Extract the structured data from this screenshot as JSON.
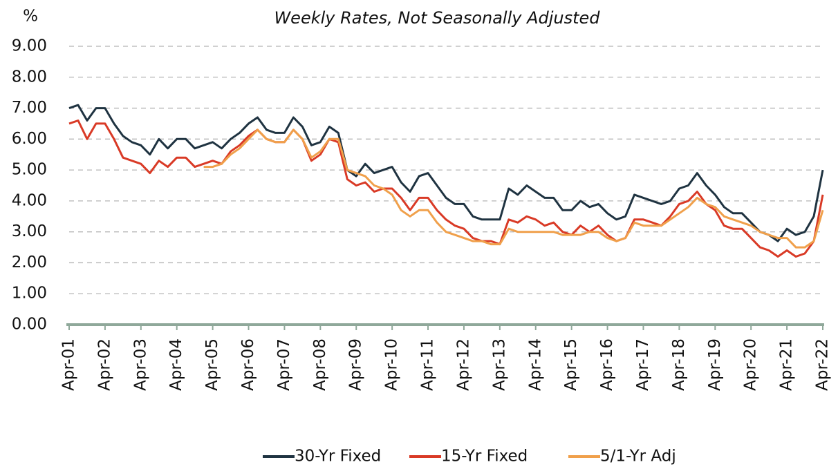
{
  "chart_data": {
    "type": "line",
    "subtitle": "Weekly Rates, Not Seasonally Adjusted",
    "y_label": "%",
    "x": [
      "2001-04",
      "2001-07",
      "2001-10",
      "2002-01",
      "2002-04",
      "2002-07",
      "2002-10",
      "2003-01",
      "2003-04",
      "2003-07",
      "2003-10",
      "2004-01",
      "2004-04",
      "2004-07",
      "2004-10",
      "2005-01",
      "2005-04",
      "2005-07",
      "2005-10",
      "2006-01",
      "2006-04",
      "2006-07",
      "2006-10",
      "2007-01",
      "2007-04",
      "2007-07",
      "2007-10",
      "2008-01",
      "2008-04",
      "2008-07",
      "2008-10",
      "2009-01",
      "2009-04",
      "2009-07",
      "2009-10",
      "2010-01",
      "2010-04",
      "2010-07",
      "2010-10",
      "2011-01",
      "2011-04",
      "2011-07",
      "2011-10",
      "2012-01",
      "2012-04",
      "2012-07",
      "2012-10",
      "2013-01",
      "2013-04",
      "2013-07",
      "2013-10",
      "2014-01",
      "2014-04",
      "2014-07",
      "2014-10",
      "2015-01",
      "2015-04",
      "2015-07",
      "2015-10",
      "2016-01",
      "2016-04",
      "2016-07",
      "2016-10",
      "2017-01",
      "2017-04",
      "2017-07",
      "2017-10",
      "2018-01",
      "2018-04",
      "2018-07",
      "2018-10",
      "2019-01",
      "2019-04",
      "2019-07",
      "2019-10",
      "2020-01",
      "2020-04",
      "2020-07",
      "2020-10",
      "2021-01",
      "2021-04",
      "2021-07",
      "2021-10",
      "2022-01",
      "2022-04"
    ],
    "series": [
      {
        "name": "30-Yr Fixed",
        "color": "#1f3341",
        "values": [
          7.0,
          7.1,
          6.6,
          7.0,
          7.0,
          6.5,
          6.1,
          5.9,
          5.8,
          5.5,
          6.0,
          5.7,
          6.0,
          6.0,
          5.7,
          5.8,
          5.9,
          5.7,
          6.0,
          6.2,
          6.5,
          6.7,
          6.3,
          6.2,
          6.2,
          6.7,
          6.4,
          5.8,
          5.9,
          6.4,
          6.2,
          5.0,
          4.8,
          5.2,
          4.9,
          5.0,
          5.1,
          4.6,
          4.3,
          4.8,
          4.9,
          4.5,
          4.1,
          3.9,
          3.9,
          3.5,
          3.4,
          3.4,
          3.4,
          4.4,
          4.2,
          4.5,
          4.3,
          4.1,
          4.1,
          3.7,
          3.7,
          4.0,
          3.8,
          3.9,
          3.6,
          3.4,
          3.5,
          4.2,
          4.1,
          4.0,
          3.9,
          4.0,
          4.4,
          4.5,
          4.9,
          4.5,
          4.2,
          3.8,
          3.6,
          3.6,
          3.3,
          3.0,
          2.9,
          2.7,
          3.1,
          2.9,
          3.0,
          3.5,
          5.0
        ]
      },
      {
        "name": "15-Yr Fixed",
        "color": "#d93a26",
        "values": [
          6.5,
          6.6,
          6.0,
          6.5,
          6.5,
          6.0,
          5.4,
          5.3,
          5.2,
          4.9,
          5.3,
          5.1,
          5.4,
          5.4,
          5.1,
          5.2,
          5.3,
          5.2,
          5.6,
          5.8,
          6.1,
          6.3,
          6.0,
          5.9,
          5.9,
          6.3,
          6.0,
          5.3,
          5.5,
          6.0,
          5.9,
          4.7,
          4.5,
          4.6,
          4.3,
          4.4,
          4.4,
          4.1,
          3.7,
          4.1,
          4.1,
          3.7,
          3.4,
          3.2,
          3.1,
          2.8,
          2.7,
          2.7,
          2.6,
          3.4,
          3.3,
          3.5,
          3.4,
          3.2,
          3.3,
          3.0,
          2.9,
          3.2,
          3.0,
          3.2,
          2.9,
          2.7,
          2.8,
          3.4,
          3.4,
          3.3,
          3.2,
          3.5,
          3.9,
          4.0,
          4.3,
          3.9,
          3.7,
          3.2,
          3.1,
          3.1,
          2.8,
          2.5,
          2.4,
          2.2,
          2.4,
          2.2,
          2.3,
          2.7,
          4.2
        ]
      },
      {
        "name": "5/1-Yr Adj",
        "color": "#f0a04b",
        "values": [
          null,
          null,
          null,
          null,
          null,
          null,
          null,
          null,
          null,
          null,
          null,
          null,
          null,
          null,
          null,
          5.1,
          5.1,
          5.2,
          5.5,
          5.7,
          6.0,
          6.3,
          6.0,
          5.9,
          5.9,
          6.3,
          6.0,
          5.4,
          5.6,
          6.0,
          6.0,
          5.0,
          4.9,
          4.8,
          4.5,
          4.4,
          4.2,
          3.7,
          3.5,
          3.7,
          3.7,
          3.3,
          3.0,
          2.9,
          2.8,
          2.7,
          2.7,
          2.6,
          2.6,
          3.1,
          3.0,
          3.0,
          3.0,
          3.0,
          3.0,
          2.9,
          2.9,
          2.9,
          3.0,
          3.0,
          2.8,
          2.7,
          2.8,
          3.3,
          3.2,
          3.2,
          3.2,
          3.4,
          3.6,
          3.8,
          4.1,
          3.9,
          3.8,
          3.5,
          3.4,
          3.3,
          3.2,
          3.0,
          2.9,
          2.8,
          2.8,
          2.5,
          2.5,
          2.7,
          3.7
        ]
      }
    ],
    "xlim": [
      "2001-04",
      "2022-04"
    ],
    "xticks": [
      {
        "value": "2001-04",
        "label": "Apr-01"
      },
      {
        "value": "2002-04",
        "label": "Apr-02"
      },
      {
        "value": "2003-04",
        "label": "Apr-03"
      },
      {
        "value": "2004-04",
        "label": "Apr-04"
      },
      {
        "value": "2005-04",
        "label": "Apr-05"
      },
      {
        "value": "2006-04",
        "label": "Apr-06"
      },
      {
        "value": "2007-04",
        "label": "Apr-07"
      },
      {
        "value": "2008-04",
        "label": "Apr-08"
      },
      {
        "value": "2009-04",
        "label": "Apr-09"
      },
      {
        "value": "2010-04",
        "label": "Apr-10"
      },
      {
        "value": "2011-04",
        "label": "Apr-11"
      },
      {
        "value": "2012-04",
        "label": "Apr-12"
      },
      {
        "value": "2013-04",
        "label": "Apr-13"
      },
      {
        "value": "2014-04",
        "label": "Apr-14"
      },
      {
        "value": "2015-04",
        "label": "Apr-15"
      },
      {
        "value": "2016-04",
        "label": "Apr-16"
      },
      {
        "value": "2017-04",
        "label": "Apr-17"
      },
      {
        "value": "2018-04",
        "label": "Apr-18"
      },
      {
        "value": "2019-04",
        "label": "Apr-19"
      },
      {
        "value": "2020-04",
        "label": "Apr-20"
      },
      {
        "value": "2021-04",
        "label": "Apr-21"
      },
      {
        "value": "2022-04",
        "label": "Apr-22"
      }
    ],
    "ylim": [
      0,
      9
    ],
    "yticks": [
      {
        "value": 0,
        "label": "0.00"
      },
      {
        "value": 1,
        "label": "1.00"
      },
      {
        "value": 2,
        "label": "2.00"
      },
      {
        "value": 3,
        "label": "3.00"
      },
      {
        "value": 4,
        "label": "4.00"
      },
      {
        "value": 5,
        "label": "5.00"
      },
      {
        "value": 6,
        "label": "6.00"
      },
      {
        "value": 7,
        "label": "7.00"
      },
      {
        "value": 8,
        "label": "8.00"
      },
      {
        "value": 9,
        "label": "9.00"
      }
    ],
    "grid": true,
    "legend": "bottom"
  }
}
